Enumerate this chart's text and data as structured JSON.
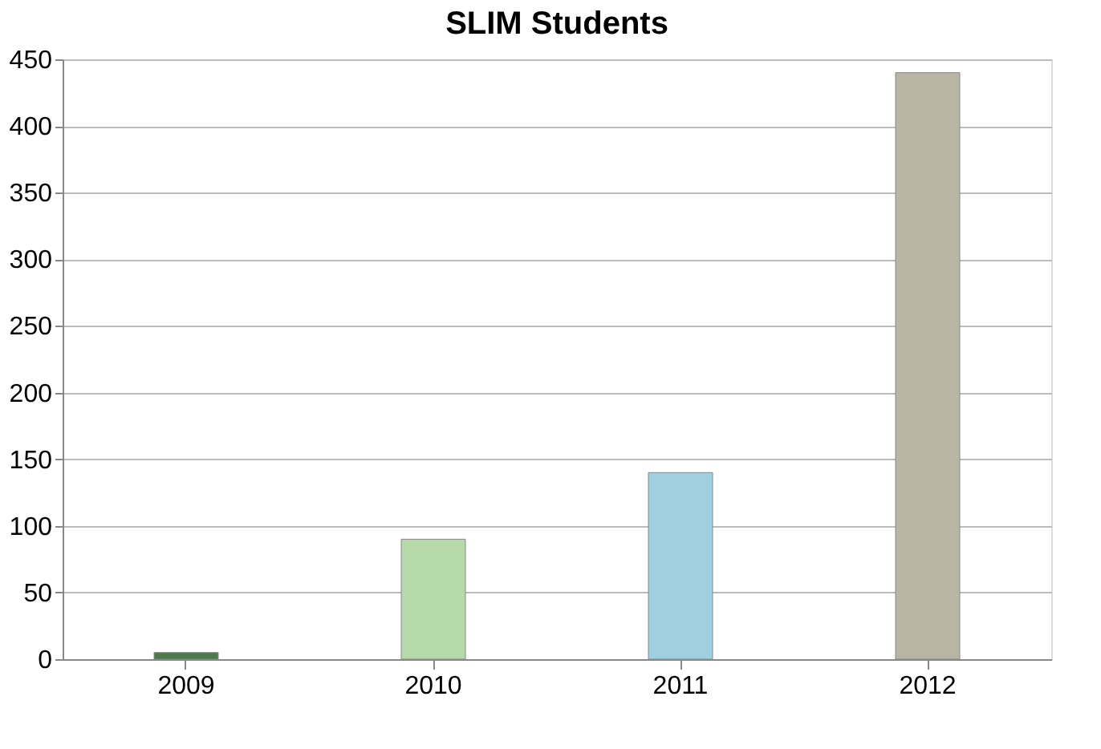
{
  "chart_data": {
    "type": "bar",
    "title": "SLIM Students",
    "categories": [
      "2009",
      "2010",
      "2011",
      "2012"
    ],
    "values": [
      5,
      90,
      140,
      440
    ],
    "colors": [
      "#4a7a4a",
      "#b5d9a8",
      "#9fcfe0",
      "#b8b5a5"
    ],
    "ylim": [
      0,
      450
    ],
    "yticks": [
      0,
      50,
      100,
      150,
      200,
      250,
      300,
      350,
      400,
      450
    ],
    "grid": "y"
  }
}
